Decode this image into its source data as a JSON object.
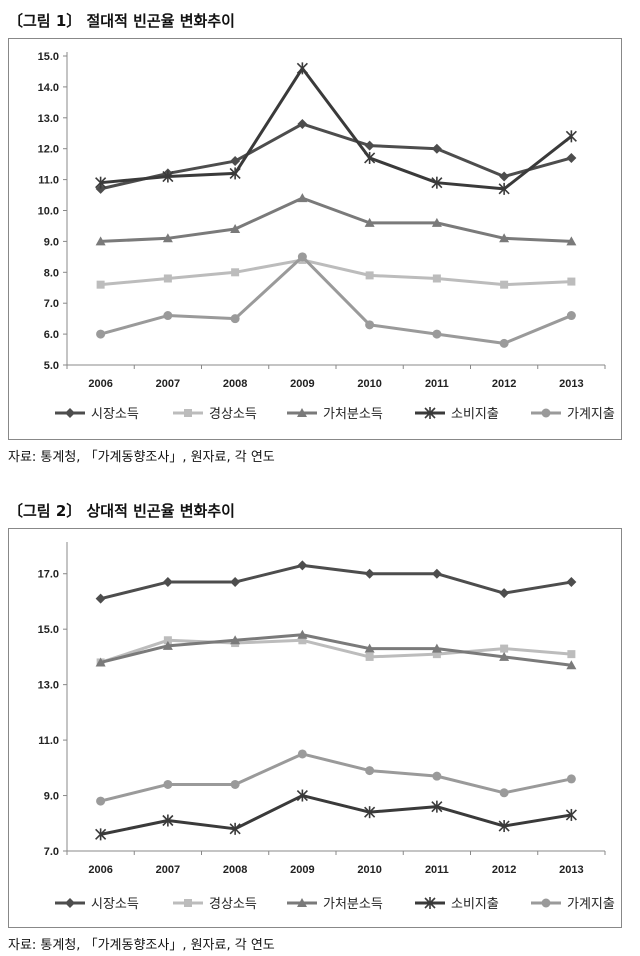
{
  "chart_data": [
    {
      "type": "line",
      "title": "〔그림 1〕 절대적 빈곤율 변화추이",
      "source": "자료: 통계청, 「가계동향조사」, 원자료, 각 연도",
      "categories": [
        "2006",
        "2007",
        "2008",
        "2009",
        "2010",
        "2011",
        "2012",
        "2013"
      ],
      "ylim": [
        5.0,
        15.0
      ],
      "yticks": [
        "5.0",
        "6.0",
        "7.0",
        "8.0",
        "9.0",
        "10.0",
        "11.0",
        "12.0",
        "13.0",
        "14.0",
        "15.0"
      ],
      "grid": false,
      "legend_position": "bottom",
      "series": [
        {
          "name": "시장소득",
          "marker": "diamond",
          "color": "#4d4d4d",
          "values": [
            10.7,
            11.2,
            11.6,
            12.8,
            12.1,
            12.0,
            11.1,
            11.7
          ]
        },
        {
          "name": "경상소득",
          "marker": "square",
          "color": "#bcbcbc",
          "values": [
            7.6,
            7.8,
            8.0,
            8.4,
            7.9,
            7.8,
            7.6,
            7.7
          ]
        },
        {
          "name": "가처분소득",
          "marker": "triangle",
          "color": "#7a7a7a",
          "values": [
            9.0,
            9.1,
            9.4,
            10.4,
            9.6,
            9.6,
            9.1,
            9.0
          ]
        },
        {
          "name": "소비지출",
          "marker": "star",
          "color": "#3a3a3a",
          "values": [
            10.9,
            11.1,
            11.2,
            14.6,
            11.7,
            10.9,
            10.7,
            12.4
          ]
        },
        {
          "name": "가계지출",
          "marker": "circle",
          "color": "#9a9a9a",
          "values": [
            6.0,
            6.6,
            6.5,
            8.5,
            6.3,
            6.0,
            5.7,
            6.6
          ]
        }
      ]
    },
    {
      "type": "line",
      "title": "〔그림 2〕 상대적 빈곤율 변화추이",
      "source": "자료: 통계청, 「가계동향조사」, 원자료, 각 연도",
      "categories": [
        "2006",
        "2007",
        "2008",
        "2009",
        "2010",
        "2011",
        "2012",
        "2013"
      ],
      "ylim": [
        7.0,
        18.0
      ],
      "yticks": [
        "7.0",
        "9.0",
        "11.0",
        "13.0",
        "15.0",
        "17.0"
      ],
      "yticks_values": [
        7,
        9,
        11,
        13,
        15,
        17
      ],
      "grid": false,
      "legend_position": "bottom",
      "series": [
        {
          "name": "시장소득",
          "marker": "diamond",
          "color": "#4d4d4d",
          "values": [
            16.1,
            16.7,
            16.7,
            17.3,
            17.0,
            17.0,
            16.3,
            16.7
          ]
        },
        {
          "name": "경상소득",
          "marker": "square",
          "color": "#bcbcbc",
          "values": [
            13.8,
            14.6,
            14.5,
            14.6,
            14.0,
            14.1,
            14.3,
            14.1
          ]
        },
        {
          "name": "가처분소득",
          "marker": "triangle",
          "color": "#7a7a7a",
          "values": [
            13.8,
            14.4,
            14.6,
            14.8,
            14.3,
            14.3,
            14.0,
            13.7
          ]
        },
        {
          "name": "소비지출",
          "marker": "star",
          "color": "#3a3a3a",
          "values": [
            7.6,
            8.1,
            7.8,
            9.0,
            8.4,
            8.6,
            7.9,
            8.3
          ]
        },
        {
          "name": "가계지출",
          "marker": "circle",
          "color": "#9a9a9a",
          "values": [
            8.8,
            9.4,
            9.4,
            10.5,
            9.9,
            9.7,
            9.1,
            9.6
          ]
        }
      ]
    }
  ]
}
